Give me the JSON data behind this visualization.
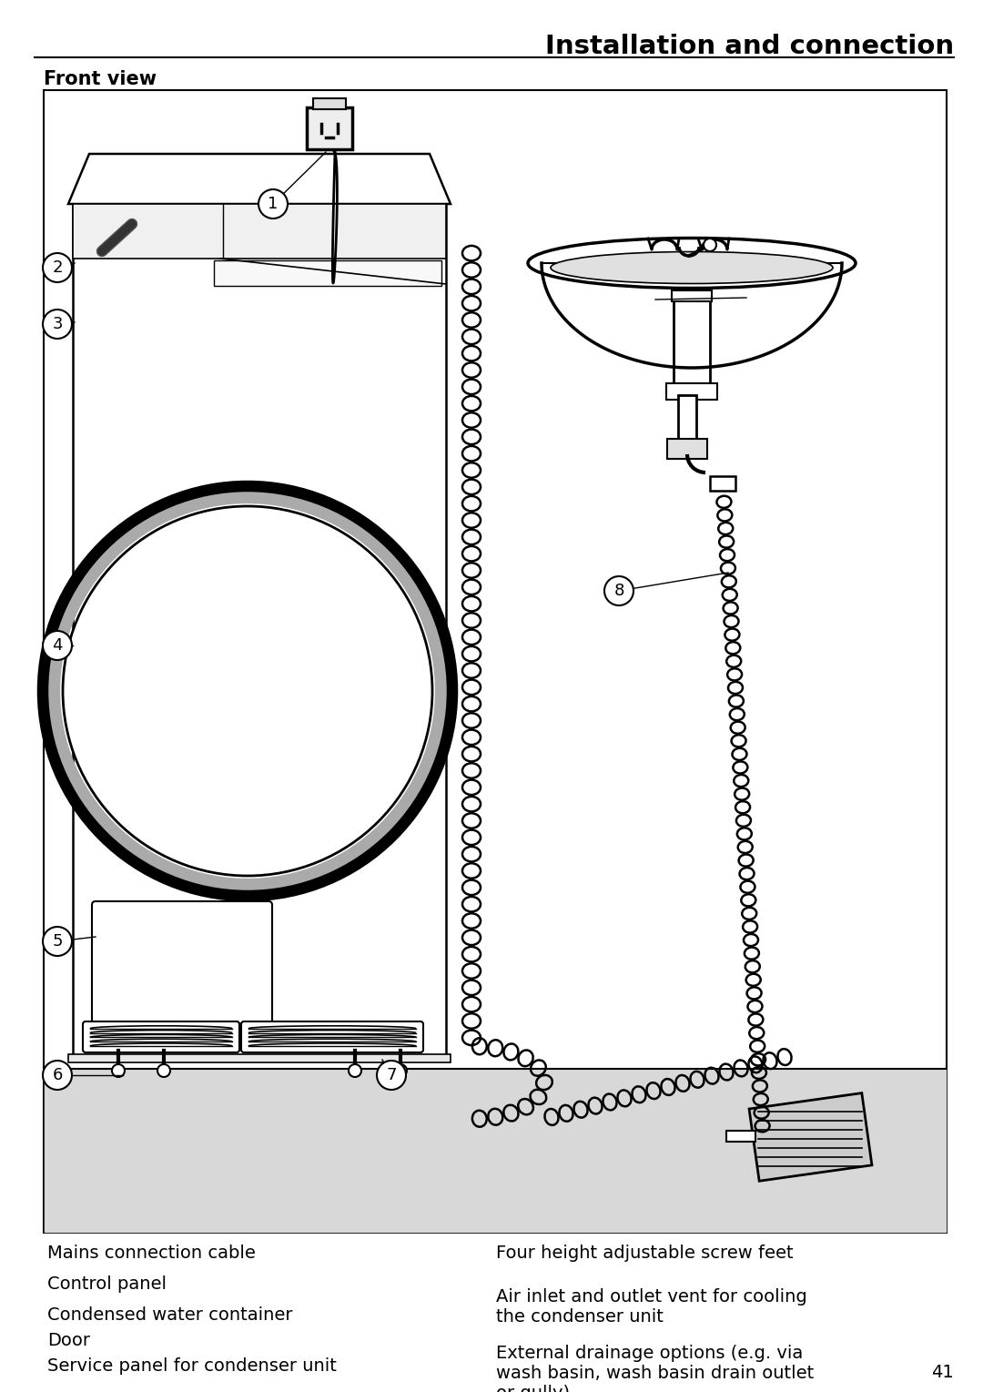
{
  "title": "Installation and connection",
  "subtitle": "Front view",
  "page_number": "41",
  "bg": "#ffffff",
  "legend_left": [
    "Mains connection cable",
    "Control panel",
    "Condensed water container",
    "Door",
    "Service panel for condenser unit"
  ],
  "legend_right": [
    "Four height adjustable screw feet",
    "Air inlet and outlet vent for cooling\nthe condenser unit",
    "External drainage options (e.g. via\nwash basin, wash basin drain outlet\nor gully)"
  ],
  "colors": {
    "black": "#000000",
    "white": "#ffffff",
    "light_gray": "#d8d8d8",
    "mid_gray": "#aaaaaa",
    "dark_gray": "#555555"
  }
}
